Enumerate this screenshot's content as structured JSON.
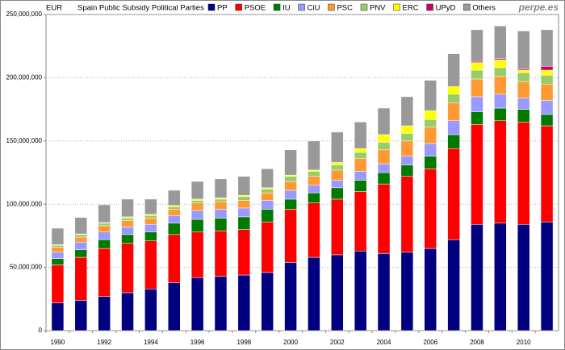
{
  "chart_data": {
    "type": "bar",
    "stacked": true,
    "title": "Spain Public Subsidy Political Parties",
    "y_label": "EUR",
    "source": "perpe.es",
    "categories": [
      "1990",
      null,
      "1992",
      null,
      "1994",
      null,
      "1996",
      null,
      "1998",
      null,
      "2000",
      null,
      "2002",
      null,
      "2004",
      null,
      "2006",
      null,
      "2008",
      null,
      "2010",
      null
    ],
    "series": [
      {
        "name": "PP",
        "color": "#000080",
        "values": [
          22000000,
          24000000,
          27000000,
          30000000,
          33000000,
          38000000,
          42000000,
          43000000,
          44000000,
          46000000,
          54000000,
          58000000,
          60000000,
          63000000,
          61000000,
          62000000,
          65000000,
          72000000,
          84000000,
          85000000,
          84000000,
          86000000
        ]
      },
      {
        "name": "PSOE",
        "color": "#ff0000",
        "values": [
          30000000,
          34000000,
          38000000,
          39000000,
          38000000,
          38000000,
          36000000,
          36000000,
          36000000,
          40000000,
          42000000,
          43000000,
          44000000,
          47000000,
          55000000,
          60000000,
          63000000,
          72000000,
          79000000,
          81000000,
          81000000,
          76000000
        ]
      },
      {
        "name": "IU",
        "color": "#007a00",
        "values": [
          5000000,
          6000000,
          7000000,
          7000000,
          7000000,
          9000000,
          10000000,
          10000000,
          10000000,
          10000000,
          8000000,
          8000000,
          9000000,
          9000000,
          9000000,
          9000000,
          10000000,
          11000000,
          10000000,
          10000000,
          10000000,
          9000000
        ]
      },
      {
        "name": "CiU",
        "color": "#9999ff",
        "values": [
          5000000,
          6000000,
          6000000,
          6000000,
          6000000,
          6000000,
          7000000,
          7000000,
          7000000,
          7000000,
          7000000,
          6000000,
          6000000,
          7000000,
          7000000,
          7000000,
          10000000,
          11000000,
          12000000,
          11000000,
          9000000,
          11000000
        ]
      },
      {
        "name": "PSC",
        "color": "#ff9933",
        "values": [
          4000000,
          4000000,
          5000000,
          5000000,
          5000000,
          5000000,
          6000000,
          6000000,
          6000000,
          6000000,
          7000000,
          7000000,
          8000000,
          10000000,
          11000000,
          12000000,
          13000000,
          14000000,
          14000000,
          14000000,
          13000000,
          13000000
        ]
      },
      {
        "name": "PNV",
        "color": "#99cc66",
        "values": [
          1500000,
          2000000,
          2000000,
          2000000,
          2000000,
          2000000,
          2000000,
          2000000,
          3000000,
          3000000,
          4000000,
          4000000,
          4000000,
          5000000,
          6000000,
          6000000,
          6000000,
          7000000,
          7000000,
          7000000,
          7000000,
          7000000
        ]
      },
      {
        "name": "ERC",
        "color": "#ffff00",
        "values": [
          500000,
          500000,
          500000,
          1000000,
          1000000,
          1000000,
          1000000,
          1000000,
          1000000,
          1000000,
          1000000,
          1000000,
          2000000,
          3000000,
          6000000,
          6000000,
          7000000,
          6000000,
          6000000,
          6000000,
          2000000,
          4000000
        ]
      },
      {
        "name": "UPyD",
        "color": "#cc0066",
        "values": [
          0,
          0,
          0,
          0,
          0,
          0,
          0,
          0,
          0,
          0,
          0,
          0,
          0,
          0,
          0,
          0,
          0,
          0,
          1000000,
          1000000,
          1000000,
          3000000
        ]
      },
      {
        "name": "Others",
        "color": "#999999",
        "values": [
          13000000,
          13000000,
          14000000,
          14000000,
          12000000,
          12000000,
          14000000,
          15000000,
          15000000,
          15000000,
          20000000,
          23000000,
          24000000,
          21000000,
          21000000,
          23000000,
          24000000,
          26000000,
          25000000,
          26000000,
          30000000,
          29000000
        ]
      }
    ],
    "ylim": [
      0,
      250000000
    ],
    "yticks": [
      0,
      {
        "value": 50000000,
        "label": "50,000,000"
      },
      {
        "value": 100000000,
        "label": "100,000,000"
      },
      {
        "value": 150000000,
        "label": "150,000,000"
      },
      {
        "value": 200000000,
        "label": "200,000,000"
      },
      {
        "value": 250000000,
        "label": "250,000,000"
      }
    ],
    "grid": true
  }
}
